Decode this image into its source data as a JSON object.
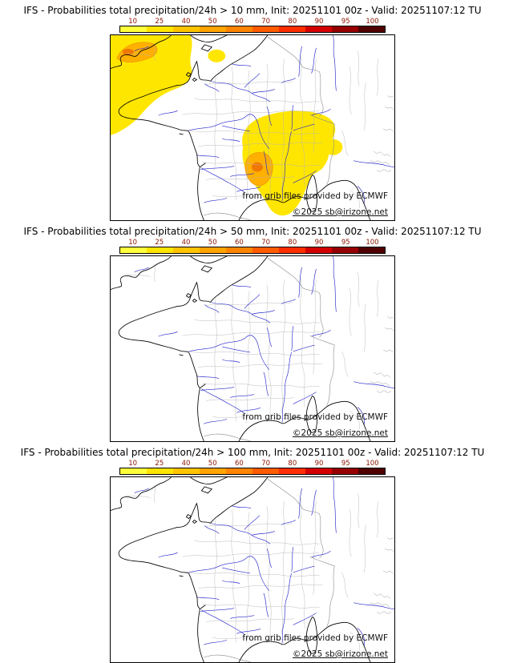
{
  "colorbar": {
    "ticks": [
      "10",
      "25",
      "40",
      "50",
      "60",
      "70",
      "80",
      "90",
      "95",
      "100"
    ],
    "colors": [
      "#ffff3c",
      "#ffe400",
      "#ffc400",
      "#ffa400",
      "#ff8400",
      "#ff5c00",
      "#ff2e00",
      "#d40000",
      "#960000",
      "#500000"
    ],
    "tick_color": "#8b1500"
  },
  "map_style": {
    "sea_color": "#ffffff",
    "coast_color": "#000000",
    "river_color": "#2828cc",
    "admin_border_color": "#b4b4b4",
    "country_border_color": "#8a8a8a",
    "overlay_yellow": "#ffe600",
    "overlay_orange": "#ffb000",
    "overlay_dark_orange": "#f07800"
  },
  "panels": [
    {
      "title": "IFS - Probabilities total precipitation/24h > 10 mm, Init: 20251101 00z - Valid: 20251107:12 TU",
      "threshold_mm": 10,
      "attribution": "from grib files provided by ECMWF",
      "copyright": "©2025 sb@irizone.net",
      "has_precip_overlay": true
    },
    {
      "title": "IFS - Probabilities total precipitation/24h > 50 mm, Init: 20251101 00z - Valid: 20251107:12 TU",
      "threshold_mm": 50,
      "attribution": "from grib files provided by ECMWF",
      "copyright": "©2025 sb@irizone.net",
      "has_precip_overlay": false
    },
    {
      "title": "IFS - Probabilities total precipitation/24h > 100 mm, Init: 20251101 00z - Valid: 20251107:12 TU",
      "threshold_mm": 100,
      "attribution": "from grib files provided by ECMWF",
      "copyright": "©2025 sb@irizone.net",
      "has_precip_overlay": false
    }
  ]
}
